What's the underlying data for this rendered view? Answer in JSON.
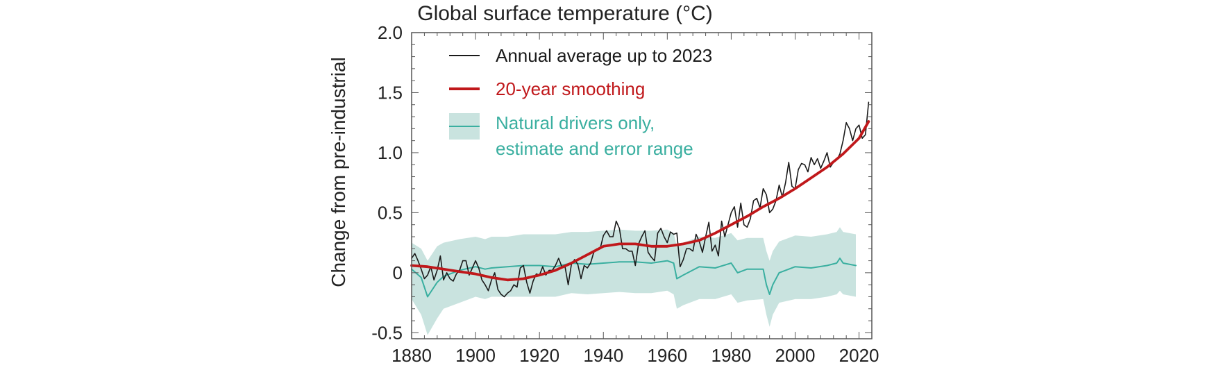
{
  "chart_data": {
    "type": "line",
    "title": "Global surface temperature (°C)",
    "xlabel": "",
    "ylabel": "Change from pre-industrial",
    "xlim": [
      1880,
      2024
    ],
    "ylim": [
      -0.55,
      2.0
    ],
    "xticks": [
      1880,
      1900,
      1920,
      1940,
      1960,
      1980,
      2000,
      2020
    ],
    "yticks": [
      {
        "value": 2.0,
        "label": "2.0"
      },
      {
        "value": 1.5,
        "label": "1.5"
      },
      {
        "value": 1.0,
        "label": "1.0"
      },
      {
        "value": 0.5,
        "label": "0.5"
      },
      {
        "value": 0.0,
        "label": "0"
      },
      {
        "value": -0.5,
        "label": "-0.5"
      }
    ],
    "colors": {
      "annual": "#1a1a1a",
      "smooth": "#c0181b",
      "natural": "#3aafa0",
      "band": "#c9e3df",
      "frame": "#555555"
    },
    "legend": {
      "position": "top-left",
      "entries": [
        {
          "key": "annual",
          "label": "Annual average up to 2023"
        },
        {
          "key": "smooth",
          "label": "20-year smoothing"
        },
        {
          "key": "natural",
          "label": "Natural drivers only,",
          "label2": "estimate and error range"
        }
      ]
    },
    "series": [
      {
        "name": "Annual average up to 2023",
        "key": "annual",
        "x": [
          1880,
          1881,
          1882,
          1883,
          1884,
          1885,
          1886,
          1887,
          1888,
          1889,
          1890,
          1891,
          1892,
          1893,
          1894,
          1895,
          1896,
          1897,
          1898,
          1899,
          1900,
          1901,
          1902,
          1903,
          1904,
          1905,
          1906,
          1907,
          1908,
          1909,
          1910,
          1911,
          1912,
          1913,
          1914,
          1915,
          1916,
          1917,
          1918,
          1919,
          1920,
          1921,
          1922,
          1923,
          1924,
          1925,
          1926,
          1927,
          1928,
          1929,
          1930,
          1931,
          1932,
          1933,
          1934,
          1935,
          1936,
          1937,
          1938,
          1939,
          1940,
          1941,
          1942,
          1943,
          1944,
          1945,
          1946,
          1947,
          1948,
          1949,
          1950,
          1951,
          1952,
          1953,
          1954,
          1955,
          1956,
          1957,
          1958,
          1959,
          1960,
          1961,
          1962,
          1963,
          1964,
          1965,
          1966,
          1967,
          1968,
          1969,
          1970,
          1971,
          1972,
          1973,
          1974,
          1975,
          1976,
          1977,
          1978,
          1979,
          1980,
          1981,
          1982,
          1983,
          1984,
          1985,
          1986,
          1987,
          1988,
          1989,
          1990,
          1991,
          1992,
          1993,
          1994,
          1995,
          1996,
          1997,
          1998,
          1999,
          2000,
          2001,
          2002,
          2003,
          2004,
          2005,
          2006,
          2007,
          2008,
          2009,
          2010,
          2011,
          2012,
          2013,
          2014,
          2015,
          2016,
          2017,
          2018,
          2019,
          2020,
          2021,
          2022,
          2023
        ],
        "values": [
          0.12,
          0.16,
          0.1,
          0.03,
          -0.05,
          -0.02,
          0.05,
          -0.06,
          0.02,
          0.14,
          -0.06,
          0.0,
          -0.05,
          -0.07,
          -0.01,
          0.02,
          0.1,
          0.1,
          -0.02,
          0.04,
          0.1,
          0.04,
          -0.06,
          -0.1,
          -0.15,
          -0.06,
          0.0,
          -0.14,
          -0.18,
          -0.2,
          -0.17,
          -0.15,
          -0.1,
          -0.12,
          0.04,
          0.06,
          -0.08,
          -0.17,
          -0.07,
          -0.01,
          -0.02,
          0.05,
          -0.02,
          0.02,
          0.02,
          0.06,
          0.12,
          0.05,
          0.05,
          -0.1,
          0.07,
          0.11,
          0.07,
          -0.05,
          0.06,
          0.04,
          0.08,
          0.17,
          0.2,
          0.2,
          0.31,
          0.35,
          0.3,
          0.3,
          0.43,
          0.37,
          0.2,
          0.2,
          0.18,
          0.18,
          0.06,
          0.24,
          0.3,
          0.35,
          0.17,
          0.13,
          0.1,
          0.33,
          0.37,
          0.3,
          0.25,
          0.34,
          0.32,
          0.33,
          0.05,
          0.11,
          0.2,
          0.2,
          0.18,
          0.32,
          0.26,
          0.17,
          0.3,
          0.42,
          0.18,
          0.23,
          0.14,
          0.43,
          0.3,
          0.4,
          0.5,
          0.55,
          0.38,
          0.58,
          0.4,
          0.38,
          0.45,
          0.6,
          0.62,
          0.54,
          0.7,
          0.65,
          0.5,
          0.53,
          0.6,
          0.73,
          0.63,
          0.75,
          0.92,
          0.72,
          0.7,
          0.86,
          0.91,
          0.9,
          0.84,
          0.96,
          0.9,
          0.95,
          0.87,
          0.93,
          1.0,
          0.88,
          0.92,
          0.94,
          0.99,
          1.1,
          1.25,
          1.2,
          1.1,
          1.2,
          1.23,
          1.12,
          1.15,
          1.42
        ]
      },
      {
        "name": "20-year smoothing",
        "key": "smooth",
        "x": [
          1880,
          1885,
          1890,
          1895,
          1900,
          1905,
          1910,
          1915,
          1920,
          1925,
          1930,
          1935,
          1940,
          1945,
          1950,
          1955,
          1960,
          1965,
          1970,
          1975,
          1980,
          1985,
          1990,
          1995,
          2000,
          2005,
          2010,
          2015,
          2020,
          2023
        ],
        "values": [
          0.06,
          0.05,
          0.03,
          0.01,
          -0.01,
          -0.04,
          -0.06,
          -0.05,
          -0.02,
          0.02,
          0.08,
          0.15,
          0.22,
          0.24,
          0.24,
          0.22,
          0.22,
          0.24,
          0.27,
          0.33,
          0.4,
          0.47,
          0.55,
          0.62,
          0.7,
          0.79,
          0.88,
          0.99,
          1.12,
          1.26
        ]
      },
      {
        "name": "Natural drivers only, estimate",
        "key": "natural",
        "x": [
          1880,
          1883,
          1885,
          1888,
          1890,
          1895,
          1900,
          1903,
          1905,
          1910,
          1915,
          1920,
          1925,
          1930,
          1935,
          1940,
          1945,
          1950,
          1955,
          1960,
          1962,
          1963,
          1965,
          1970,
          1975,
          1980,
          1982,
          1985,
          1990,
          1991,
          1992,
          1993,
          1995,
          2000,
          2005,
          2010,
          2013,
          2014,
          2015,
          2019
        ],
        "values": [
          0.03,
          -0.04,
          -0.2,
          -0.08,
          -0.03,
          0.02,
          0.05,
          0.03,
          0.04,
          0.05,
          0.06,
          0.06,
          0.05,
          0.08,
          0.07,
          0.08,
          0.09,
          0.09,
          0.08,
          0.1,
          0.08,
          -0.05,
          -0.02,
          0.05,
          0.04,
          0.08,
          0.0,
          0.03,
          0.03,
          -0.1,
          -0.18,
          -0.1,
          0.0,
          0.05,
          0.04,
          0.06,
          0.08,
          0.12,
          0.08,
          0.06
        ]
      }
    ],
    "band": {
      "name": "Natural drivers only, error range",
      "x": [
        1880,
        1883,
        1885,
        1888,
        1890,
        1895,
        1900,
        1903,
        1905,
        1910,
        1915,
        1920,
        1925,
        1930,
        1935,
        1940,
        1945,
        1950,
        1955,
        1960,
        1962,
        1963,
        1965,
        1970,
        1975,
        1980,
        1982,
        1985,
        1990,
        1991,
        1992,
        1993,
        1995,
        2000,
        2005,
        2010,
        2013,
        2014,
        2015,
        2019
      ],
      "lower": [
        -0.22,
        -0.35,
        -0.52,
        -0.38,
        -0.3,
        -0.25,
        -0.2,
        -0.22,
        -0.2,
        -0.2,
        -0.2,
        -0.2,
        -0.2,
        -0.17,
        -0.18,
        -0.17,
        -0.16,
        -0.17,
        -0.17,
        -0.15,
        -0.18,
        -0.3,
        -0.27,
        -0.22,
        -0.22,
        -0.18,
        -0.25,
        -0.23,
        -0.22,
        -0.35,
        -0.45,
        -0.35,
        -0.25,
        -0.22,
        -0.22,
        -0.2,
        -0.18,
        -0.15,
        -0.18,
        -0.2
      ],
      "upper": [
        0.25,
        0.2,
        0.1,
        0.22,
        0.25,
        0.28,
        0.3,
        0.28,
        0.3,
        0.3,
        0.32,
        0.32,
        0.32,
        0.34,
        0.34,
        0.35,
        0.36,
        0.35,
        0.35,
        0.36,
        0.33,
        0.22,
        0.25,
        0.3,
        0.29,
        0.33,
        0.27,
        0.29,
        0.29,
        0.18,
        0.1,
        0.18,
        0.26,
        0.31,
        0.3,
        0.32,
        0.34,
        0.38,
        0.34,
        0.32
      ]
    }
  }
}
